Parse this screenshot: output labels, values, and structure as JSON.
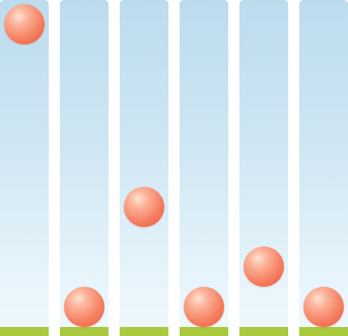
{
  "scene": {
    "name": "bouncing-balls",
    "colors": {
      "sky_top": "#bcdcee",
      "sky_bottom": "#eef8fd",
      "ground": "#a9c93f",
      "ball": "#f57d5f"
    },
    "lanes": [
      {
        "id": 1,
        "ball_height_fraction": 1.0
      },
      {
        "id": 2,
        "ball_height_fraction": 0.0
      },
      {
        "id": 3,
        "ball_height_fraction": 0.355
      },
      {
        "id": 4,
        "ball_height_fraction": 0.0
      },
      {
        "id": 5,
        "ball_height_fraction": 0.143
      },
      {
        "id": 6,
        "ball_height_fraction": 0.0
      }
    ]
  }
}
